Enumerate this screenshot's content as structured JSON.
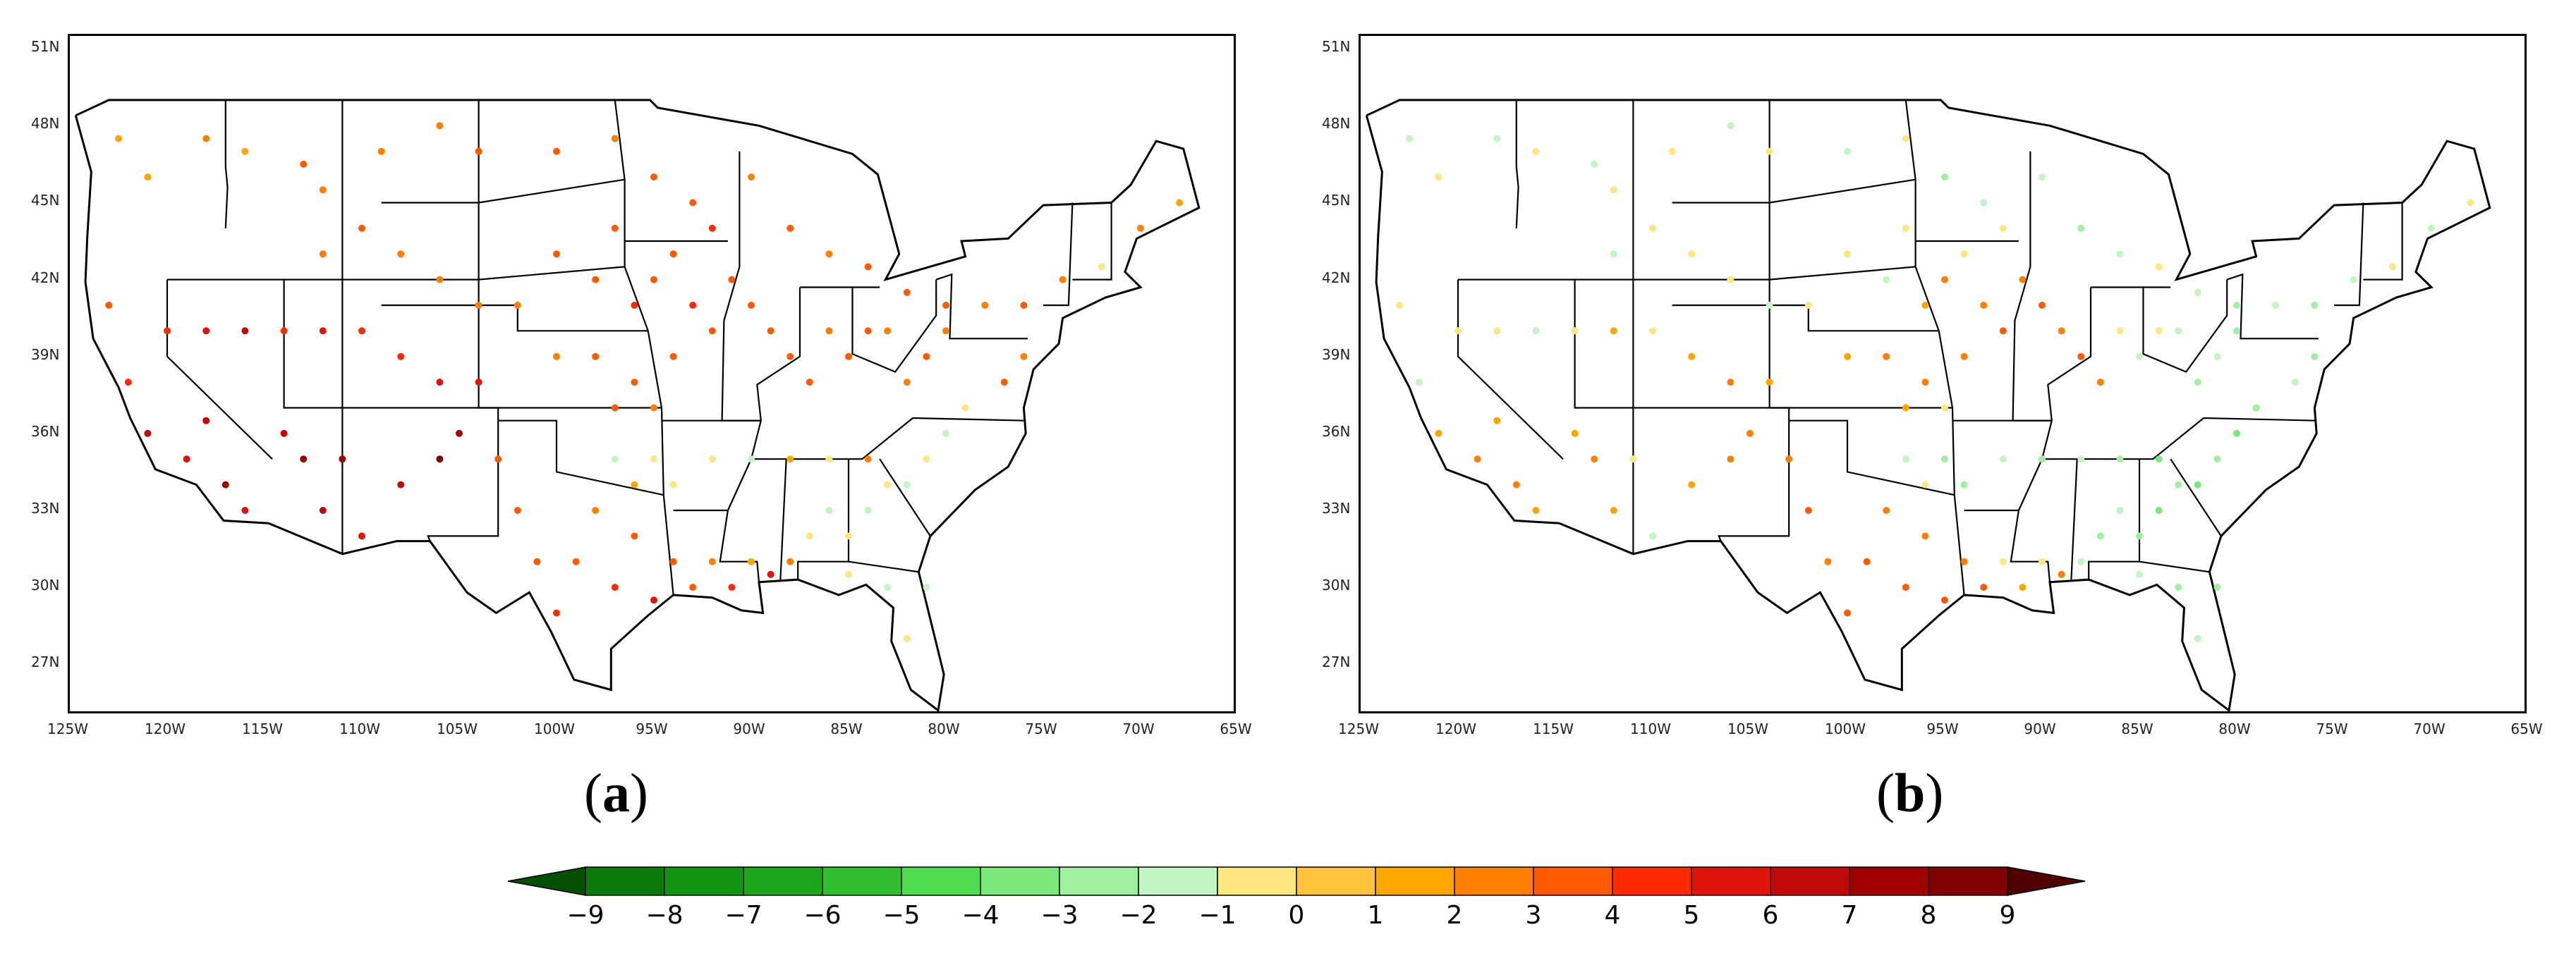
{
  "panels": [
    {
      "label": "a"
    },
    {
      "label": "b"
    }
  ],
  "axes": {
    "x_ticks": [
      "125W",
      "120W",
      "115W",
      "110W",
      "105W",
      "100W",
      "95W",
      "90W",
      "85W",
      "80W",
      "75W",
      "70W",
      "65W"
    ],
    "y_ticks": [
      "51N",
      "48N",
      "45N",
      "42N",
      "39N",
      "36N",
      "33N",
      "30N",
      "27N"
    ],
    "lon_range": [
      -125,
      -65
    ],
    "lat_range": [
      25,
      51.5
    ]
  },
  "colorbar": {
    "labels": [
      "−9",
      "−8",
      "−7",
      "−6",
      "−5",
      "−4",
      "−3",
      "−2",
      "−1",
      "0",
      "1",
      "2",
      "3",
      "4",
      "5",
      "6",
      "7",
      "8",
      "9"
    ],
    "colors": [
      "#0a7a0a",
      "#119411",
      "#1ba61b",
      "#2fbf2f",
      "#4fdc4f",
      "#7ae87a",
      "#9ff09f",
      "#c2f5c2",
      "#ffe680",
      "#ffc43c",
      "#ffa500",
      "#ff7f00",
      "#ff5a00",
      "#ff2a00",
      "#e0140a",
      "#c00a0a",
      "#a00000",
      "#800000"
    ],
    "under_color": "#055005",
    "over_color": "#500000"
  },
  "chart_data": [
    {
      "type": "scatter",
      "panel": "a",
      "description_units": "station values on colorbar scale",
      "points": [
        [
          -122.5,
          47.5,
          1
        ],
        [
          -121,
          46,
          1
        ],
        [
          -118,
          47.5,
          2
        ],
        [
          -116,
          47,
          1
        ],
        [
          -113,
          46.5,
          3
        ],
        [
          -112,
          45.5,
          2
        ],
        [
          -109,
          47,
          2
        ],
        [
          -106,
          48,
          2
        ],
        [
          -104,
          47,
          3
        ],
        [
          -100,
          47,
          3
        ],
        [
          -97,
          47.5,
          2
        ],
        [
          -95,
          46,
          3
        ],
        [
          -93,
          45,
          3
        ],
        [
          -92,
          44,
          4
        ],
        [
          -90,
          46,
          2
        ],
        [
          -88,
          44,
          3
        ],
        [
          -86,
          43,
          2
        ],
        [
          -84,
          42.5,
          3
        ],
        [
          -82,
          41.5,
          3
        ],
        [
          -80,
          41,
          3
        ],
        [
          -78,
          41,
          2
        ],
        [
          -76,
          41,
          3
        ],
        [
          -74,
          42,
          2
        ],
        [
          -72,
          42.5,
          -1
        ],
        [
          -70,
          44,
          2
        ],
        [
          -68,
          45,
          1
        ],
        [
          -123,
          41,
          3
        ],
        [
          -122,
          38,
          4
        ],
        [
          -121,
          36,
          6
        ],
        [
          -119,
          35,
          5
        ],
        [
          -118,
          36.5,
          6
        ],
        [
          -117,
          34,
          7
        ],
        [
          -116,
          33,
          5
        ],
        [
          -114,
          36,
          6
        ],
        [
          -113,
          35,
          7
        ],
        [
          -112,
          33,
          6
        ],
        [
          -111,
          35,
          7
        ],
        [
          -110,
          32,
          5
        ],
        [
          -108,
          34,
          6
        ],
        [
          -106,
          35,
          8
        ],
        [
          -105,
          36,
          7
        ],
        [
          -104,
          38,
          5
        ],
        [
          -106,
          38,
          5
        ],
        [
          -108,
          39,
          4
        ],
        [
          -110,
          40,
          4
        ],
        [
          -112,
          40,
          5
        ],
        [
          -114,
          40,
          4
        ],
        [
          -116,
          40,
          6
        ],
        [
          -118,
          40,
          5
        ],
        [
          -120,
          40,
          4
        ],
        [
          -103,
          35,
          3
        ],
        [
          -102,
          33,
          3
        ],
        [
          -101,
          31,
          3
        ],
        [
          -100,
          29,
          4
        ],
        [
          -99,
          31,
          3
        ],
        [
          -98,
          33,
          2
        ],
        [
          -97,
          30,
          4
        ],
        [
          -96,
          32,
          3
        ],
        [
          -95,
          29.5,
          5
        ],
        [
          -94,
          31,
          3
        ],
        [
          -93,
          30,
          3
        ],
        [
          -92,
          31,
          2
        ],
        [
          -91,
          30,
          4
        ],
        [
          -90,
          31,
          1
        ],
        [
          -89,
          30.5,
          5
        ],
        [
          -88,
          31,
          2
        ],
        [
          -87,
          32,
          -1
        ],
        [
          -86,
          33,
          -2
        ],
        [
          -85,
          32,
          -1
        ],
        [
          -84,
          33,
          -2
        ],
        [
          -83,
          34,
          -1
        ],
        [
          -82,
          34,
          -2
        ],
        [
          -81,
          35,
          -1
        ],
        [
          -80,
          36,
          -2
        ],
        [
          -79,
          37,
          -1
        ],
        [
          -77,
          38,
          3
        ],
        [
          -76,
          39,
          2
        ],
        [
          -100,
          39,
          2
        ],
        [
          -98,
          39,
          3
        ],
        [
          -97,
          37,
          3
        ],
        [
          -96,
          38,
          3
        ],
        [
          -95,
          37,
          2
        ],
        [
          -94,
          39,
          3
        ],
        [
          -93,
          41,
          4
        ],
        [
          -92,
          40,
          3
        ],
        [
          -91,
          42,
          3
        ],
        [
          -90,
          41,
          3
        ],
        [
          -89,
          40,
          3
        ],
        [
          -88,
          39,
          3
        ],
        [
          -87,
          38,
          3
        ],
        [
          -86,
          40,
          2
        ],
        [
          -85,
          39,
          3
        ],
        [
          -84,
          40,
          3
        ],
        [
          -83,
          40,
          2
        ],
        [
          -82,
          38,
          2
        ],
        [
          -81,
          39,
          3
        ],
        [
          -80,
          40,
          2
        ],
        [
          -100,
          43,
          3
        ],
        [
          -98,
          42,
          3
        ],
        [
          -97,
          44,
          3
        ],
        [
          -96,
          41,
          4
        ],
        [
          -95,
          42,
          3
        ],
        [
          -94,
          43,
          3
        ],
        [
          -102,
          41,
          2
        ],
        [
          -104,
          41,
          2
        ],
        [
          -106,
          42,
          2
        ],
        [
          -108,
          43,
          2
        ],
        [
          -110,
          44,
          3
        ],
        [
          -112,
          43,
          2
        ],
        [
          -95,
          35,
          -1
        ],
        [
          -97,
          35,
          -2
        ],
        [
          -96,
          34,
          1
        ],
        [
          -94,
          34,
          -1
        ],
        [
          -92,
          35,
          -1
        ],
        [
          -90,
          35,
          -2
        ],
        [
          -88,
          35,
          1
        ],
        [
          -86,
          35,
          -1
        ],
        [
          -84,
          35,
          2
        ],
        [
          -81,
          30,
          -2
        ],
        [
          -82,
          28,
          -1
        ],
        [
          -83,
          30,
          -2
        ],
        [
          -85,
          30.5,
          -1
        ]
      ]
    },
    {
      "type": "scatter",
      "panel": "b",
      "description_units": "station values on colorbar scale",
      "points": [
        [
          -122.5,
          47.5,
          -2
        ],
        [
          -121,
          46,
          -1
        ],
        [
          -118,
          47.5,
          -2
        ],
        [
          -116,
          47,
          -1
        ],
        [
          -113,
          46.5,
          -2
        ],
        [
          -112,
          45.5,
          -1
        ],
        [
          -109,
          47,
          -1
        ],
        [
          -106,
          48,
          -2
        ],
        [
          -104,
          47,
          -1
        ],
        [
          -100,
          47,
          -2
        ],
        [
          -97,
          47.5,
          -1
        ],
        [
          -95,
          46,
          -3
        ],
        [
          -93,
          45,
          -2
        ],
        [
          -92,
          44,
          -1
        ],
        [
          -90,
          46,
          -2
        ],
        [
          -88,
          44,
          -3
        ],
        [
          -86,
          43,
          -2
        ],
        [
          -84,
          42.5,
          -1
        ],
        [
          -82,
          41.5,
          -2
        ],
        [
          -80,
          41,
          -3
        ],
        [
          -78,
          41,
          -2
        ],
        [
          -76,
          41,
          -3
        ],
        [
          -74,
          42,
          -2
        ],
        [
          -72,
          42.5,
          -1
        ],
        [
          -70,
          44,
          -2
        ],
        [
          -68,
          45,
          -1
        ],
        [
          -123,
          41,
          -1
        ],
        [
          -122,
          38,
          -2
        ],
        [
          -121,
          36,
          1
        ],
        [
          -119,
          35,
          2
        ],
        [
          -118,
          36.5,
          1
        ],
        [
          -117,
          34,
          2
        ],
        [
          -116,
          33,
          1
        ],
        [
          -114,
          36,
          1
        ],
        [
          -113,
          35,
          2
        ],
        [
          -112,
          33,
          1
        ],
        [
          -111,
          35,
          -1
        ],
        [
          -110,
          32,
          -2
        ],
        [
          -108,
          34,
          1
        ],
        [
          -106,
          35,
          2
        ],
        [
          -105,
          36,
          2
        ],
        [
          -104,
          38,
          1
        ],
        [
          -106,
          38,
          2
        ],
        [
          -108,
          39,
          1
        ],
        [
          -110,
          40,
          -1
        ],
        [
          -112,
          40,
          1
        ],
        [
          -114,
          40,
          -1
        ],
        [
          -116,
          40,
          -2
        ],
        [
          -118,
          40,
          -1
        ],
        [
          -120,
          40,
          -1
        ],
        [
          -103,
          35,
          2
        ],
        [
          -102,
          33,
          3
        ],
        [
          -101,
          31,
          2
        ],
        [
          -100,
          29,
          3
        ],
        [
          -99,
          31,
          3
        ],
        [
          -98,
          33,
          2
        ],
        [
          -97,
          30,
          3
        ],
        [
          -96,
          32,
          2
        ],
        [
          -95,
          29.5,
          3
        ],
        [
          -94,
          31,
          2
        ],
        [
          -93,
          30,
          3
        ],
        [
          -92,
          31,
          -1
        ],
        [
          -91,
          30,
          1
        ],
        [
          -90,
          31,
          -1
        ],
        [
          -89,
          30.5,
          2
        ],
        [
          -88,
          31,
          -2
        ],
        [
          -87,
          32,
          -3
        ],
        [
          -86,
          33,
          -2
        ],
        [
          -85,
          32,
          -3
        ],
        [
          -84,
          33,
          -4
        ],
        [
          -83,
          34,
          -3
        ],
        [
          -82,
          34,
          -4
        ],
        [
          -81,
          35,
          -3
        ],
        [
          -80,
          36,
          -4
        ],
        [
          -79,
          37,
          -3
        ],
        [
          -77,
          38,
          -2
        ],
        [
          -76,
          39,
          -3
        ],
        [
          -100,
          39,
          1
        ],
        [
          -98,
          39,
          2
        ],
        [
          -97,
          37,
          1
        ],
        [
          -96,
          38,
          2
        ],
        [
          -95,
          37,
          -1
        ],
        [
          -94,
          39,
          2
        ],
        [
          -93,
          41,
          2
        ],
        [
          -92,
          40,
          3
        ],
        [
          -91,
          42,
          2
        ],
        [
          -90,
          41,
          3
        ],
        [
          -89,
          40,
          2
        ],
        [
          -88,
          39,
          3
        ],
        [
          -87,
          38,
          2
        ],
        [
          -86,
          40,
          -1
        ],
        [
          -85,
          39,
          -2
        ],
        [
          -84,
          40,
          -1
        ],
        [
          -83,
          40,
          -2
        ],
        [
          -82,
          38,
          -3
        ],
        [
          -81,
          39,
          -2
        ],
        [
          -80,
          40,
          -3
        ],
        [
          -100,
          43,
          -1
        ],
        [
          -98,
          42,
          -2
        ],
        [
          -97,
          44,
          -1
        ],
        [
          -96,
          41,
          1
        ],
        [
          -95,
          42,
          2
        ],
        [
          -94,
          43,
          -1
        ],
        [
          -102,
          41,
          -1
        ],
        [
          -104,
          41,
          -2
        ],
        [
          -106,
          42,
          -1
        ],
        [
          -108,
          43,
          -1
        ],
        [
          -110,
          44,
          -1
        ],
        [
          -112,
          43,
          -2
        ],
        [
          -95,
          35,
          -3
        ],
        [
          -97,
          35,
          -2
        ],
        [
          -96,
          34,
          -1
        ],
        [
          -94,
          34,
          -3
        ],
        [
          -92,
          35,
          -2
        ],
        [
          -90,
          35,
          -3
        ],
        [
          -88,
          35,
          -2
        ],
        [
          -86,
          35,
          -3
        ],
        [
          -84,
          35,
          -4
        ],
        [
          -81,
          30,
          -3
        ],
        [
          -82,
          28,
          -2
        ],
        [
          -83,
          30,
          -3
        ],
        [
          -85,
          30.5,
          -2
        ]
      ]
    }
  ]
}
